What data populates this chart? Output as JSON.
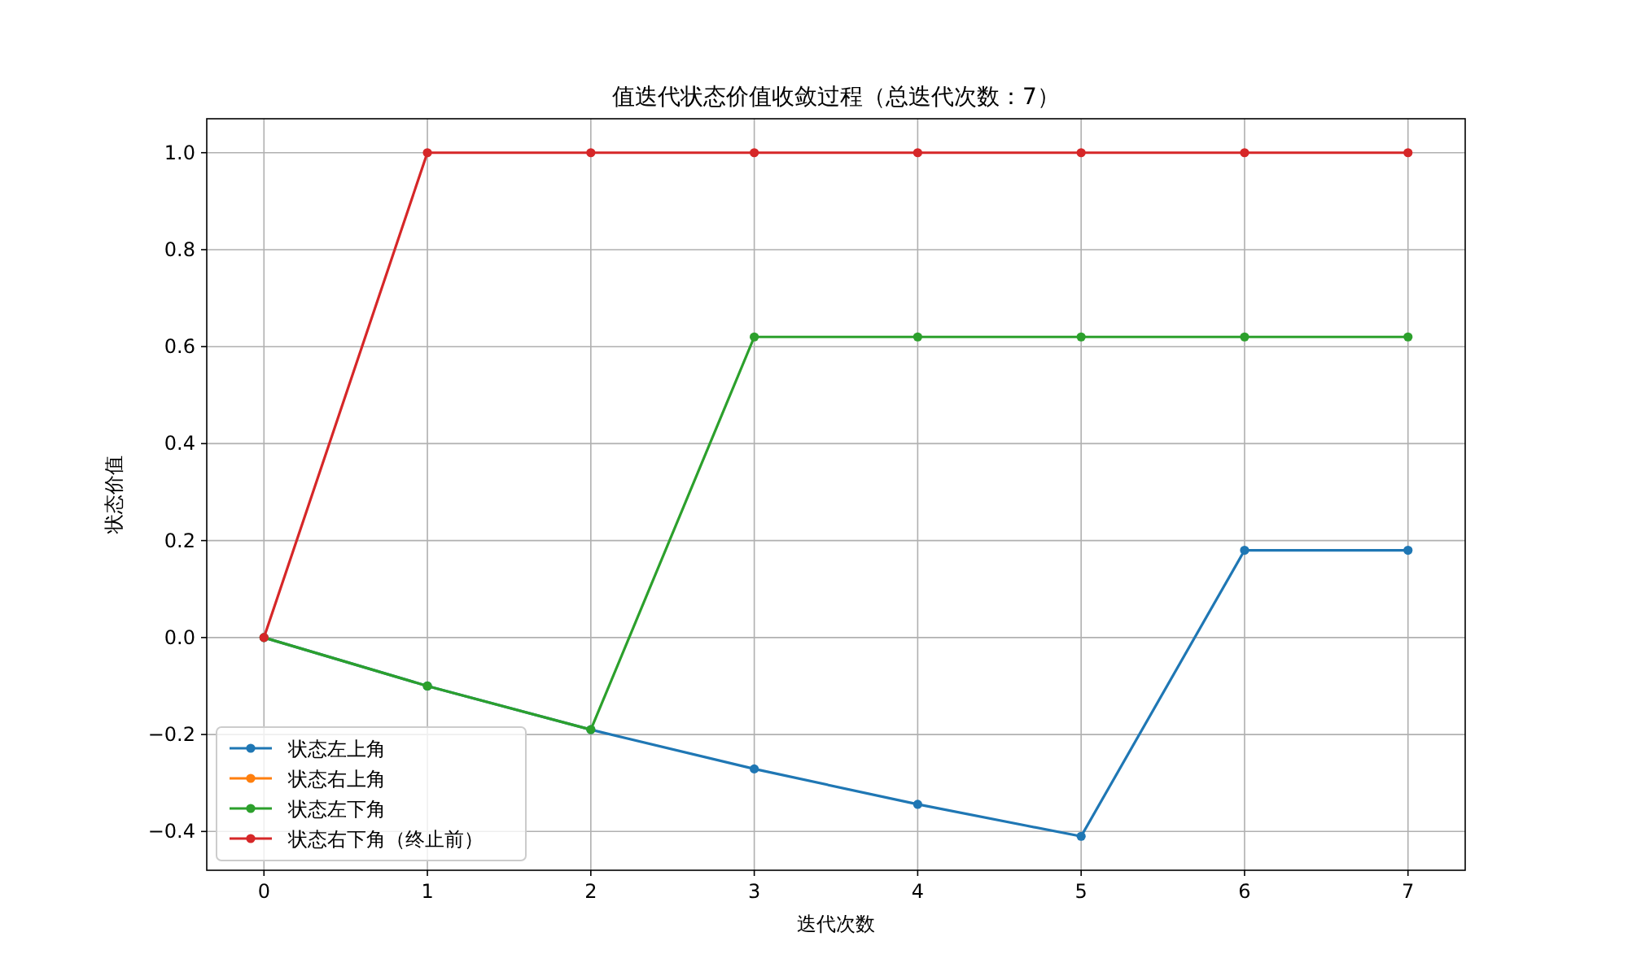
{
  "chart_data": {
    "type": "line",
    "title": "值迭代状态价值收敛过程（总迭代次数：7）",
    "xlabel": "迭代次数",
    "ylabel": "状态价值",
    "x": [
      0,
      1,
      2,
      3,
      4,
      5,
      6,
      7
    ],
    "series": [
      {
        "name": "状态左上角",
        "color": "#1f77b4",
        "values": [
          0,
          -0.1,
          -0.19,
          -0.271,
          -0.344,
          -0.41,
          0.18,
          0.18
        ]
      },
      {
        "name": "状态右上角",
        "color": "#ff7f0e",
        "values": [
          null,
          null,
          null,
          null,
          null,
          null,
          null,
          null
        ]
      },
      {
        "name": "状态左下角",
        "color": "#2ca02c",
        "values": [
          0,
          -0.1,
          -0.19,
          0.62,
          0.62,
          0.62,
          0.62,
          0.62
        ]
      },
      {
        "name": "状态右下角（终止前）",
        "color": "#d62728",
        "values": [
          0,
          1,
          1,
          1,
          1,
          1,
          1,
          1
        ]
      }
    ],
    "xlim": [
      -0.35,
      7.35
    ],
    "ylim": [
      -0.48,
      1.07
    ],
    "xticks": [
      0,
      1,
      2,
      3,
      4,
      5,
      6,
      7
    ],
    "yticks": [
      {
        "value": -0.4,
        "label": "−0.4"
      },
      {
        "value": -0.2,
        "label": "−0.2"
      },
      {
        "value": 0,
        "label": "0.0"
      },
      {
        "value": 0.2,
        "label": "0.2"
      },
      {
        "value": 0.4,
        "label": "0.4"
      },
      {
        "value": 0.6,
        "label": "0.6"
      },
      {
        "value": 0.8,
        "label": "0.8"
      },
      {
        "value": 1,
        "label": "1.0"
      }
    ],
    "grid": true,
    "legend": "bottom left",
    "marker": "circle",
    "line_style": "solid"
  }
}
